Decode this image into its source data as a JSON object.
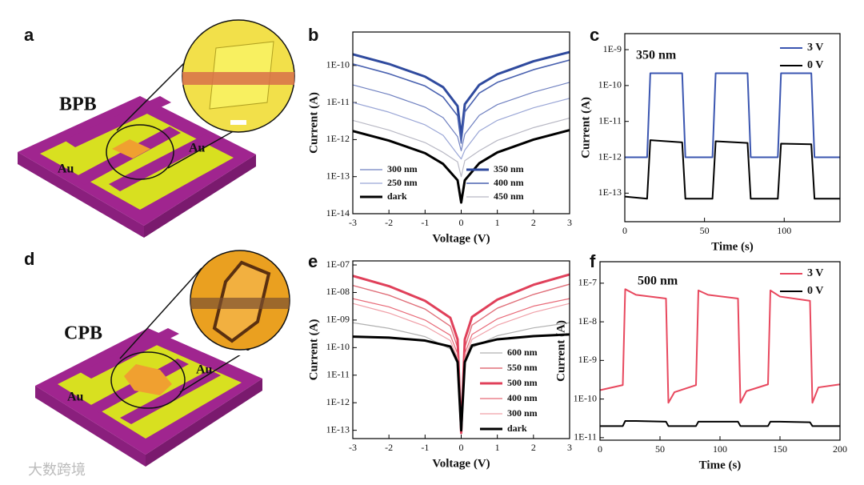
{
  "panels": {
    "a": {
      "letter": "a",
      "name": "BPB",
      "electrodes": [
        "Au",
        "Au"
      ]
    },
    "d": {
      "letter": "d",
      "name": "CPB",
      "electrodes": [
        "Au",
        "Au"
      ]
    },
    "watermark": "大数跨境"
  },
  "chart_data": [
    {
      "type": "line",
      "panel": "b",
      "xlabel": "Voltage (V)",
      "ylabel": "Current (A)",
      "log_y": true,
      "legend": "lower center",
      "xlim": [
        -3,
        3
      ],
      "xticks": [
        -3,
        -2,
        -1,
        0,
        1,
        2,
        3
      ],
      "ylim": [
        1e-14,
        8e-10
      ],
      "yticks": [
        {
          "value": 1e-14,
          "label": "1E-14"
        },
        {
          "value": 1e-13,
          "label": "1E-13"
        },
        {
          "value": 1e-12,
          "label": "1E-12"
        },
        {
          "value": 1e-11,
          "label": "1E-11"
        },
        {
          "value": 1e-10,
          "label": "1E-10"
        }
      ],
      "x": [
        -3,
        -2,
        -1,
        -0.5,
        -0.1,
        0,
        0.1,
        0.5,
        1,
        2,
        3
      ],
      "series": [
        {
          "name": "300 nm",
          "color": "#6f80c0",
          "linewidth": 1.2,
          "values": [
            3e-11,
            1.65e-11,
            7.5e-12,
            3.9e-12,
            1.2e-12,
            5e-13,
            1.4e-12,
            4.5e-12,
            8.8e-12,
            1.9e-11,
            3.5e-11
          ]
        },
        {
          "name": "250 nm",
          "color": "#9aa6d6",
          "linewidth": 1.2,
          "values": [
            1e-11,
            5.5e-12,
            2.5e-12,
            1.3e-12,
            4e-13,
            3e-13,
            5.2e-13,
            1.7e-12,
            3.3e-12,
            7.2e-12,
            1.3e-11
          ]
        },
        {
          "name": "dark",
          "color": "#000000",
          "linewidth": 3,
          "values": [
            1.7e-12,
            9.4e-13,
            4.3e-13,
            2.2e-13,
            8e-14,
            2e-14,
            8e-14,
            2.3e-13,
            4.5e-13,
            1e-12,
            1.8e-12
          ]
        },
        {
          "name": "350 nm",
          "color": "#2f4a9e",
          "linewidth": 3,
          "label_color": "#2f4a9e",
          "values": [
            2e-10,
            1.1e-10,
            5e-11,
            2.6e-11,
            8e-12,
            1.2e-12,
            9e-12,
            3e-11,
            5.8e-11,
            1.3e-10,
            2.3e-10
          ]
        },
        {
          "name": "400 nm",
          "color": "#4a62b0",
          "linewidth": 1.6,
          "values": [
            1.1e-10,
            6e-11,
            2.8e-11,
            1.4e-11,
            4.4e-12,
            8e-13,
            5.6e-12,
            1.8e-11,
            3.5e-11,
            7.7e-11,
            1.4e-10
          ]
        },
        {
          "name": "450 nm",
          "color": "#b8b8c4",
          "linewidth": 1.2,
          "values": [
            3.3e-12,
            1.8e-12,
            8.3e-13,
            4.5e-13,
            2.5e-13,
            1e-13,
            2.7e-13,
            5e-13,
            9.5e-13,
            2.1e-12,
            3.8e-12
          ]
        }
      ]
    },
    {
      "type": "line",
      "panel": "c",
      "xlabel": "Time (s)",
      "ylabel": "Current (A)",
      "log_y": true,
      "legend": "upper right",
      "annotation": "350 nm",
      "annotation_color": "#2f4a9e",
      "xlim": [
        0,
        135
      ],
      "xticks": [
        0,
        50,
        100
      ],
      "ylim": [
        1.6e-14,
        2.8e-09
      ],
      "yticks": [
        {
          "value": 1e-13,
          "label": "1E-13"
        },
        {
          "value": 1e-12,
          "label": "1E-12"
        },
        {
          "value": 1e-11,
          "label": "1E-11"
        },
        {
          "value": 1e-10,
          "label": "1E-10"
        },
        {
          "value": 1e-09,
          "label": "1E-9"
        }
      ],
      "x": [
        0,
        14,
        16,
        36,
        38,
        55,
        57,
        77,
        79,
        96,
        98,
        117,
        119,
        135
      ],
      "series": [
        {
          "name": "3 V",
          "color": "#3a55b0",
          "linewidth": 2,
          "values": [
            1e-12,
            1e-12,
            2.2e-10,
            2.2e-10,
            1e-12,
            1e-12,
            2.2e-10,
            2.2e-10,
            1e-12,
            1e-12,
            2.2e-10,
            2.2e-10,
            1e-12,
            1e-12
          ]
        },
        {
          "name": "0 V",
          "color": "#000000",
          "linewidth": 2,
          "values": [
            8e-14,
            7e-14,
            3e-12,
            2.6e-12,
            7e-14,
            7e-14,
            2.8e-12,
            2.5e-12,
            7e-14,
            7e-14,
            2.4e-12,
            2.3e-12,
            7e-14,
            7e-14
          ]
        }
      ]
    },
    {
      "type": "line",
      "panel": "e",
      "xlabel": "Voltage (V)",
      "ylabel": "Current (A)",
      "log_y": true,
      "legend": "lower right",
      "xlim": [
        -3,
        3
      ],
      "xticks": [
        -3,
        -2,
        -1,
        0,
        1,
        2,
        3
      ],
      "ylim": [
        5e-14,
        1.4e-07
      ],
      "yticks": [
        {
          "value": 1e-13,
          "label": "1E-13"
        },
        {
          "value": 1e-12,
          "label": "1E-12"
        },
        {
          "value": 1e-11,
          "label": "1E-11"
        },
        {
          "value": 1e-10,
          "label": "1E-10"
        },
        {
          "value": 1e-09,
          "label": "1E-09"
        },
        {
          "value": 1e-08,
          "label": "1E-08"
        },
        {
          "value": 1e-07,
          "label": "1E-07"
        }
      ],
      "x": [
        -3,
        -2,
        -1,
        -0.3,
        -0.1,
        0,
        0.1,
        0.3,
        1,
        2,
        3
      ],
      "series": [
        {
          "name": "600 nm",
          "color": "#b0b0b0",
          "linewidth": 1.2,
          "values": [
            8e-10,
            5e-10,
            2.5e-10,
            9e-11,
            2.5e-11,
            1.5e-13,
            2.5e-11,
            1e-10,
            2.7e-10,
            5.2e-10,
            8e-10
          ]
        },
        {
          "name": "550 nm",
          "color": "#e0707a",
          "linewidth": 1.4,
          "values": [
            1.8e-08,
            8e-09,
            2.5e-09,
            6e-10,
            1e-10,
            1e-13,
            1e-10,
            6.5e-10,
            2.7e-09,
            8.5e-09,
            2e-08
          ]
        },
        {
          "name": "500 nm",
          "color": "#e0405a",
          "linewidth": 3,
          "label_color": "#e0405a",
          "values": [
            4e-08,
            1.7e-08,
            5e-09,
            1.2e-09,
            2e-10,
            8e-14,
            2e-10,
            1.3e-09,
            5.5e-09,
            1.9e-08,
            4.5e-08
          ]
        },
        {
          "name": "400 nm",
          "color": "#e86a78",
          "linewidth": 1.2,
          "values": [
            6e-09,
            3e-09,
            1e-09,
            2.8e-10,
            6e-11,
            1.5e-13,
            6e-11,
            3e-10,
            1.1e-09,
            3.2e-09,
            6e-09
          ]
        },
        {
          "name": "300 nm",
          "color": "#f0a0a8",
          "linewidth": 1.2,
          "values": [
            4e-09,
            1.8e-09,
            6e-10,
            1.8e-10,
            4e-11,
            1.5e-13,
            4e-11,
            2e-10,
            6.5e-10,
            1.9e-09,
            4e-09
          ]
        },
        {
          "name": "dark",
          "color": "#000000",
          "linewidth": 3,
          "values": [
            2.5e-10,
            2.3e-10,
            1.8e-10,
            1.1e-10,
            3e-11,
            1e-13,
            3e-11,
            1.2e-10,
            2e-10,
            2.6e-10,
            3e-10
          ]
        }
      ]
    },
    {
      "type": "line",
      "panel": "f",
      "xlabel": "Time (s)",
      "ylabel": "Current (A)",
      "log_y": true,
      "legend": "upper right",
      "annotation": "500 nm",
      "annotation_color": "#e0405a",
      "xlim": [
        0,
        200
      ],
      "xticks": [
        0,
        50,
        100,
        150,
        200
      ],
      "ylim": [
        8.6e-12,
        3.6e-07
      ],
      "yticks": [
        {
          "value": 1e-11,
          "label": "1E-11"
        },
        {
          "value": 1e-10,
          "label": "1E-10"
        },
        {
          "value": 1e-09,
          "label": "1E-9"
        },
        {
          "value": 1e-08,
          "label": "1E-8"
        },
        {
          "value": 1e-07,
          "label": "1E-7"
        }
      ],
      "x": [
        0,
        19,
        21,
        30,
        55,
        57,
        62,
        80,
        82,
        90,
        115,
        117,
        122,
        140,
        142,
        150,
        175,
        177,
        182,
        200
      ],
      "series": [
        {
          "name": "3 V",
          "color": "#e8485e",
          "linewidth": 2,
          "values": [
            1.7e-10,
            2.3e-10,
            7e-08,
            5e-08,
            4e-08,
            8e-11,
            1.5e-10,
            2.3e-10,
            6.5e-08,
            5e-08,
            4e-08,
            8e-11,
            1.6e-10,
            2.4e-10,
            6.5e-08,
            4.5e-08,
            3.5e-08,
            8e-11,
            2e-10,
            2.4e-10
          ]
        },
        {
          "name": "0 V",
          "color": "#000000",
          "linewidth": 2,
          "values": [
            2e-11,
            2e-11,
            2.7e-11,
            2.7e-11,
            2.6e-11,
            2e-11,
            2e-11,
            2e-11,
            2.6e-11,
            2.6e-11,
            2.6e-11,
            2e-11,
            2e-11,
            2e-11,
            2.6e-11,
            2.6e-11,
            2.5e-11,
            2e-11,
            2e-11,
            2e-11
          ]
        }
      ]
    }
  ]
}
